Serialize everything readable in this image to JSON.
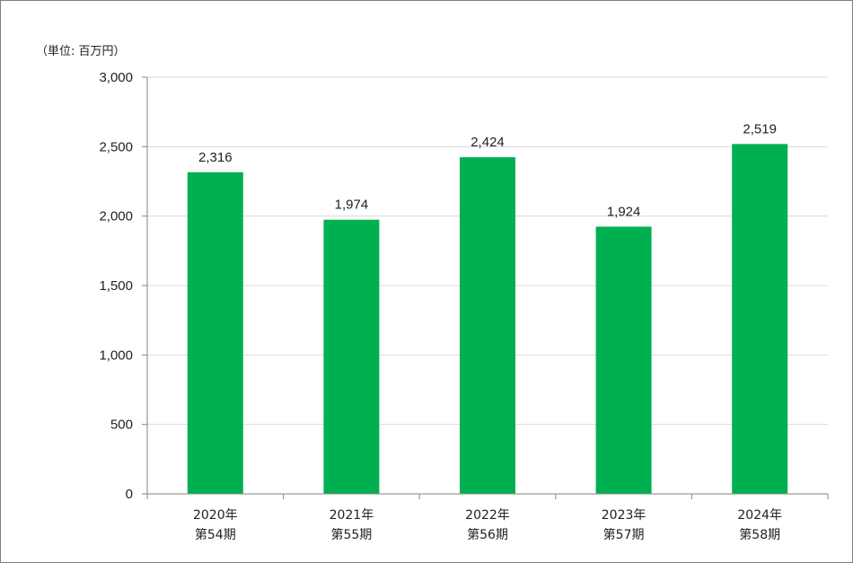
{
  "unit_label": "（単位: 百万円）",
  "colors": {
    "bar": "#00b050",
    "grid": "#d9d9d9",
    "axis": "#868686"
  },
  "chart_data": {
    "type": "bar",
    "categories": [
      [
        "2020年",
        "第54期"
      ],
      [
        "2021年",
        "第55期"
      ],
      [
        "2022年",
        "第56期"
      ],
      [
        "2023年",
        "第57期"
      ],
      [
        "2024年",
        "第58期"
      ]
    ],
    "values": [
      2316,
      1974,
      2424,
      1924,
      2519
    ],
    "data_labels": [
      "2,316",
      "1,974",
      "2,424",
      "1,924",
      "2,519"
    ],
    "ylim": [
      0,
      3000
    ],
    "yticks": [
      0,
      500,
      1000,
      1500,
      2000,
      2500,
      3000
    ],
    "ytick_labels": [
      "0",
      "500",
      "1,000",
      "1,500",
      "2,000",
      "2,500",
      "3,000"
    ],
    "grid": true,
    "legend": "none"
  }
}
